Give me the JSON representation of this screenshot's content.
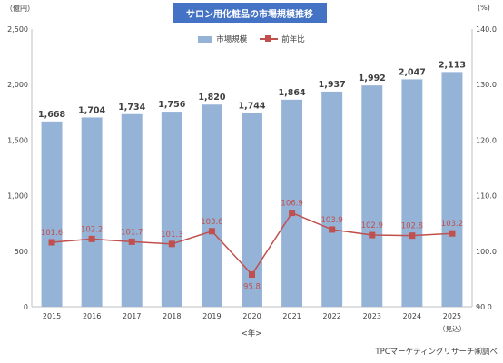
{
  "title": "サロン用化粧品の市場規模推移",
  "left_unit": "（億円）",
  "right_unit": "(%)",
  "legend": {
    "bar": "市場規模",
    "line": "前年比"
  },
  "x_axis_name": "<年>",
  "source": "TPCマーケティングリサーチ㈱調べ",
  "colors": {
    "bar": "#95b3d7",
    "line": "#c0504d",
    "title_bg": "#4472c4"
  },
  "chart_data": {
    "type": "bar+line",
    "categories": [
      "2015",
      "2016",
      "2017",
      "2018",
      "2019",
      "2020",
      "2021",
      "2022",
      "2023",
      "2024",
      "2025"
    ],
    "category_notes": {
      "2025": "（見込）"
    },
    "series": [
      {
        "name": "市場規模",
        "type": "bar",
        "axis": "left",
        "values": [
          1668,
          1704,
          1734,
          1756,
          1820,
          1744,
          1864,
          1937,
          1992,
          2047,
          2113
        ],
        "labels": [
          "1,668",
          "1,704",
          "1,734",
          "1,756",
          "1,820",
          "1,744",
          "1,864",
          "1,937",
          "1,992",
          "2,047",
          "2,113"
        ]
      },
      {
        "name": "前年比",
        "type": "line",
        "axis": "right",
        "values": [
          101.6,
          102.2,
          101.7,
          101.3,
          103.6,
          95.8,
          106.9,
          103.9,
          102.9,
          102.8,
          103.2
        ],
        "labels": [
          "101.6",
          "102.2",
          "101.7",
          "101.3",
          "103.6",
          "95.8",
          "106.9",
          "103.9",
          "102.9",
          "102.8",
          "103.2"
        ]
      }
    ],
    "y_left": {
      "min": 0,
      "max": 2500,
      "step": 500,
      "ticks": [
        "0",
        "500",
        "1,000",
        "1,500",
        "2,000",
        "2,500"
      ]
    },
    "y_right": {
      "min": 90,
      "max": 140,
      "step": 10,
      "ticks": [
        "90.0",
        "100.0",
        "110.0",
        "120.0",
        "130.0",
        "140.0"
      ]
    },
    "grid": false,
    "legend_position": "top-center"
  }
}
